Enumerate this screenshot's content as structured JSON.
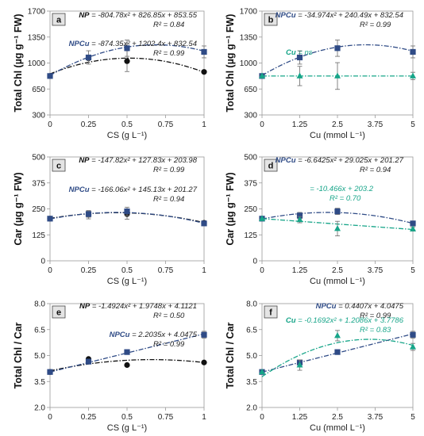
{
  "colors": {
    "NP": "#111111",
    "NPCu": "#2F4B86",
    "Cu": "#17A589",
    "error": "#777777"
  },
  "chart_data": [
    {
      "type": "scatter",
      "panel_label": "a",
      "ylabel": "Total Chl (µg g⁻¹ FW)",
      "xlabel": "CS (g L⁻¹)",
      "ylim": [
        300,
        1700
      ],
      "yticks": [
        "300",
        "650",
        "1000",
        "1350",
        "1700"
      ],
      "xlim": [
        0,
        1
      ],
      "xticks": [
        "0",
        "0.25",
        "0.5",
        "0.75",
        "1"
      ],
      "xtick_values": [
        0,
        0.25,
        0.5,
        0.75,
        1
      ],
      "grid": false,
      "series": [
        {
          "name": "NP",
          "marker": "circle",
          "color": "#111111",
          "x": [
            0,
            0.25,
            0.5,
            1
          ],
          "y": [
            825,
            1065,
            1025,
            880
          ],
          "err": [
            0,
            0,
            140,
            0
          ],
          "fit": [
            -804.78,
            826.85,
            853.55
          ]
        },
        {
          "name": "NPCu",
          "marker": "square",
          "color": "#2F4B86",
          "x": [
            0,
            0.25,
            0.5,
            1
          ],
          "y": [
            825,
            1075,
            1200,
            1150
          ],
          "err": [
            0,
            90,
            110,
            80
          ],
          "fit": [
            -874.35,
            1202.4,
            832.54
          ]
        }
      ],
      "equations": [
        {
          "series": "NP",
          "label": "NP",
          "text": " = -804.78x² + 826.85x + 853.55",
          "r2": "R² = 0.84"
        },
        {
          "series": "NPCu",
          "label": "NPCu",
          "text": " = -874.35x² + 1202.4x + 832.54",
          "r2": "R² = 0.99"
        }
      ]
    },
    {
      "type": "scatter",
      "panel_label": "b",
      "ylabel": "Total Chl (µg g⁻¹ FW)",
      "xlabel": "Cu (mmol L⁻¹)",
      "ylim": [
        300,
        1700
      ],
      "yticks": [
        "300",
        "650",
        "1000",
        "1350",
        "1700"
      ],
      "xlim": [
        0,
        5
      ],
      "xticks": [
        "0",
        "1.25",
        "2.5",
        "3.75",
        "5"
      ],
      "xtick_values": [
        0,
        1.25,
        2.5,
        3.75,
        5
      ],
      "grid": false,
      "series": [
        {
          "name": "NPCu",
          "marker": "square",
          "color": "#2F4B86",
          "x": [
            0,
            1.25,
            2.5,
            5
          ],
          "y": [
            825,
            1075,
            1200,
            1150
          ],
          "err": [
            0,
            90,
            110,
            80
          ],
          "fit": [
            -34.974,
            240.49,
            832.54
          ]
        },
        {
          "name": "Cu",
          "marker": "triangle",
          "color": "#17A589",
          "x": [
            0,
            1.25,
            2.5,
            5
          ],
          "y": [
            825,
            825,
            825,
            825
          ],
          "err": [
            0,
            130,
            180,
            50
          ],
          "fit": [
            0,
            0,
            825
          ]
        }
      ],
      "equations": [
        {
          "series": "NPCu",
          "label": "NPCu",
          "text": " = -34.974x² + 240.49x + 832.54",
          "r2": "R² = 0.99"
        },
        {
          "series": "Cu",
          "label": "Cu",
          "text": " = ns",
          "r2": ""
        }
      ]
    },
    {
      "type": "scatter",
      "panel_label": "c",
      "ylabel": "Car (µg g⁻¹ FW)",
      "xlabel": "CS (g L⁻¹)",
      "ylim": [
        0,
        500
      ],
      "yticks": [
        "0",
        "125",
        "250",
        "375",
        "500"
      ],
      "xlim": [
        0,
        1
      ],
      "xticks": [
        "0",
        "0.25",
        "0.5",
        "0.75",
        "1"
      ],
      "xtick_values": [
        0,
        0.25,
        0.5,
        0.75,
        1
      ],
      "grid": false,
      "series": [
        {
          "name": "NP",
          "marker": "circle",
          "color": "#111111",
          "x": [
            0,
            0.25,
            0.5,
            1
          ],
          "y": [
            203,
            222,
            225,
            183
          ],
          "err": [
            0,
            20,
            25,
            0
          ],
          "fit": [
            -147.82,
            127.83,
            203.98
          ]
        },
        {
          "name": "NPCu",
          "marker": "square",
          "color": "#2F4B86",
          "x": [
            0,
            0.25,
            0.5,
            1
          ],
          "y": [
            203,
            225,
            238,
            180
          ],
          "err": [
            0,
            15,
            20,
            10
          ],
          "fit": [
            -166.06,
            145.13,
            201.27
          ]
        }
      ],
      "equations": [
        {
          "series": "NP",
          "label": "NP",
          "text": " = -147.82x² + 127.83x + 203.98",
          "r2": "R² = 0.99"
        },
        {
          "series": "NPCu",
          "label": "NPCu",
          "text": " = -166.06x² + 145.13x + 201.27",
          "r2": "R² = 0.94"
        }
      ]
    },
    {
      "type": "scatter",
      "panel_label": "d",
      "ylabel": "Car (µg g⁻¹ FW)",
      "xlabel": "Cu (mmol L⁻¹)",
      "ylim": [
        0,
        500
      ],
      "yticks": [
        "0",
        "125",
        "250",
        "375",
        "500"
      ],
      "xlim": [
        0,
        5
      ],
      "xticks": [
        "0",
        "1.25",
        "2.5",
        "3.75",
        "5"
      ],
      "xtick_values": [
        0,
        1.25,
        2.5,
        3.75,
        5
      ],
      "grid": false,
      "series": [
        {
          "name": "NPCu",
          "marker": "square",
          "color": "#2F4B86",
          "x": [
            0,
            1.25,
            2.5,
            5
          ],
          "y": [
            203,
            218,
            238,
            180
          ],
          "err": [
            0,
            15,
            15,
            10
          ],
          "fit": [
            -6.6425,
            29.025,
            201.27
          ]
        },
        {
          "name": "Cu",
          "marker": "triangle",
          "color": "#17A589",
          "x": [
            0,
            1.25,
            2.5,
            5
          ],
          "y": [
            203,
            198,
            155,
            153
          ],
          "err": [
            0,
            15,
            35,
            10
          ],
          "fit": [
            0,
            -10.466,
            203.2
          ]
        }
      ],
      "equations": [
        {
          "series": "NPCu",
          "label": "NPCu",
          "text": " = -6.6425x² + 29.025x + 201.27",
          "r2": "R² = 0.94"
        },
        {
          "series": "Cu",
          "label": "",
          "text": "= -10.466x + 203.2",
          "r2": "R² = 0.70"
        }
      ]
    },
    {
      "type": "scatter",
      "panel_label": "e",
      "ylabel": "Total Chl / Car",
      "xlabel": "CS (g L⁻¹)",
      "ylim": [
        2.0,
        8.0
      ],
      "yticks": [
        "2.0",
        "3.5",
        "5.0",
        "6.5",
        "8.0"
      ],
      "xlim": [
        0,
        1
      ],
      "xticks": [
        "0",
        "0.25",
        "0.5",
        "0.75",
        "1"
      ],
      "xtick_values": [
        0,
        0.25,
        0.5,
        0.75,
        1
      ],
      "grid": false,
      "series": [
        {
          "name": "NP",
          "marker": "circle",
          "color": "#111111",
          "x": [
            0,
            0.25,
            0.5,
            1
          ],
          "y": [
            4.05,
            4.8,
            4.45,
            4.6
          ],
          "err": [
            0,
            0,
            0,
            0
          ],
          "fit": [
            -1.4924,
            1.9748,
            4.1121
          ]
        },
        {
          "name": "NPCu",
          "marker": "square",
          "color": "#2F4B86",
          "x": [
            0,
            0.25,
            0.5,
            1
          ],
          "y": [
            4.05,
            4.65,
            5.2,
            6.2
          ],
          "err": [
            0,
            0,
            0,
            0.2
          ],
          "fit": [
            0,
            2.2035,
            4.0475
          ]
        }
      ],
      "equations": [
        {
          "series": "NP",
          "label": "NP",
          "text": " = -1.4924x² + 1.9748x + 4.1121",
          "r2": "R² = 0.50"
        },
        {
          "series": "NPCu",
          "label": "NPCu",
          "text": " = 2.2035x + 4.0475",
          "r2": "R² = 0.99"
        }
      ]
    },
    {
      "type": "scatter",
      "panel_label": "f",
      "ylabel": "Total Chl / Car",
      "xlabel": "Cu (mmol L⁻¹)",
      "ylim": [
        2.0,
        8.0
      ],
      "yticks": [
        "2.0",
        "3.5",
        "5.0",
        "6.5",
        "8.0"
      ],
      "xlim": [
        0,
        5
      ],
      "xticks": [
        "0",
        "1.25",
        "2.5",
        "3.75",
        "5"
      ],
      "xtick_values": [
        0,
        1.25,
        2.5,
        3.75,
        5
      ],
      "grid": false,
      "series": [
        {
          "name": "NPCu",
          "marker": "square",
          "color": "#2F4B86",
          "x": [
            0,
            1.25,
            2.5,
            5
          ],
          "y": [
            4.05,
            4.6,
            5.2,
            6.2
          ],
          "err": [
            0,
            0,
            0,
            0.2
          ],
          "fit": [
            0,
            0.4407,
            4.0475
          ]
        },
        {
          "name": "Cu",
          "marker": "triangle",
          "color": "#17A589",
          "x": [
            0,
            1.25,
            2.5,
            5
          ],
          "y": [
            4.05,
            4.45,
            6.15,
            5.5
          ],
          "err": [
            0,
            0.3,
            0.3,
            0.2
          ],
          "fit": [
            -0.1692,
            1.2086,
            3.7786
          ]
        }
      ],
      "equations": [
        {
          "series": "NPCu",
          "label": "NPCu",
          "text": " = 0.4407x + 4.0475",
          "r2": "R² = 0.99"
        },
        {
          "series": "Cu",
          "label": "Cu",
          "text": " = -0.1692x² + 1.2086x + 3.7786",
          "r2": "R² = 0.83"
        }
      ]
    }
  ]
}
